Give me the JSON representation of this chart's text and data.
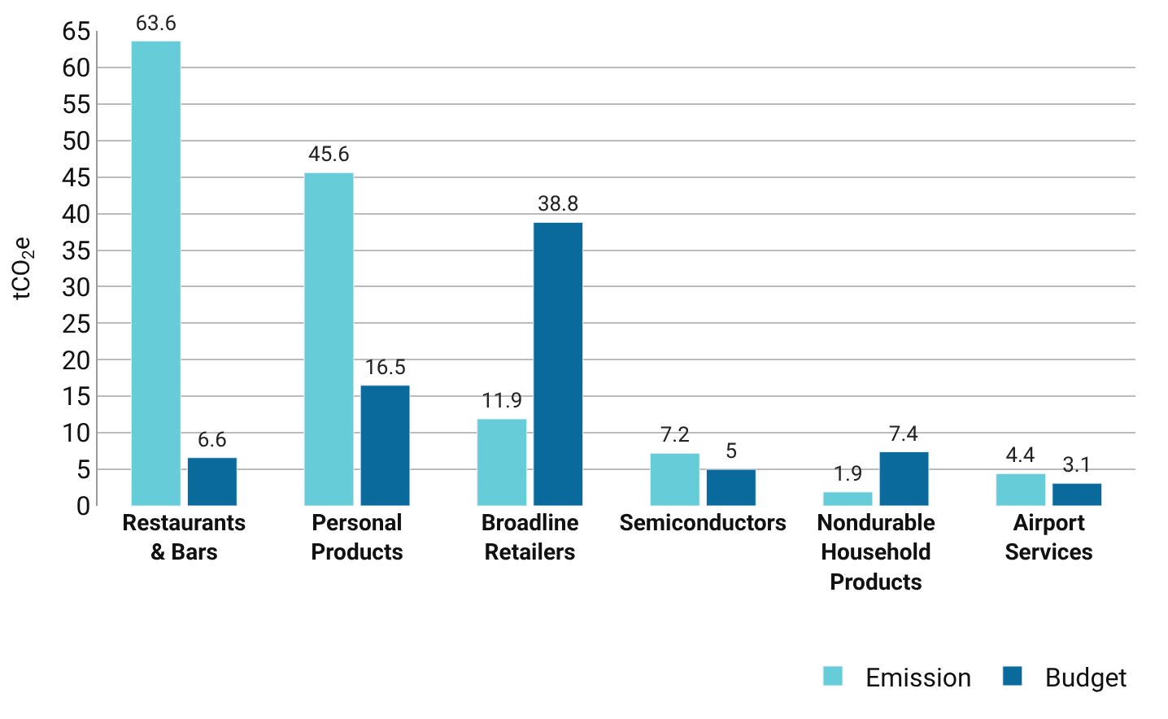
{
  "chart_data": {
    "type": "bar",
    "ylabel": "tCO$_{2}$e",
    "categories": [
      "Restaurants & Bars",
      "Personal Products",
      "Broadline Retailers",
      "Semiconductors",
      "Nondurable Household Products",
      "Airport Services"
    ],
    "series": [
      {
        "name": "Emission",
        "color": "#66cdd8",
        "values": [
          63.6,
          45.6,
          11.9,
          7.2,
          1.9,
          4.4
        ]
      },
      {
        "name": "Budget",
        "color": "#0a6a9c",
        "values": [
          6.6,
          16.5,
          38.8,
          5,
          7.4,
          3.1
        ]
      }
    ],
    "ylim": [
      0,
      65
    ],
    "yticks": [
      0,
      5,
      10,
      15,
      20,
      25,
      30,
      35,
      40,
      45,
      50,
      55,
      60,
      65
    ],
    "grid": "y",
    "data_labels": true,
    "legend": "bottom right"
  }
}
